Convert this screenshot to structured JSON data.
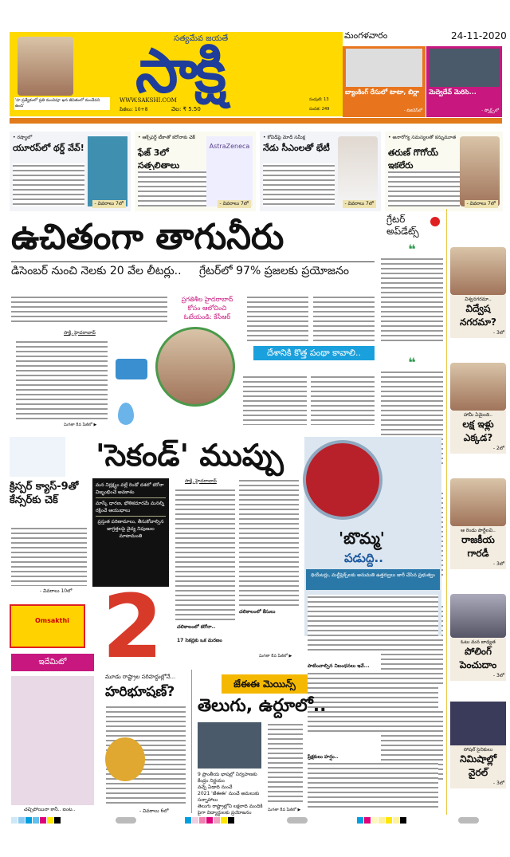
{
  "masthead": {
    "motto": "సత్యమేవ జయతే",
    "logo": "సాక్షి",
    "website": "WWW.SAKSHI.COM",
    "pages": "పేజీలు: 10+8",
    "price": "వెల: ₹ 5.50",
    "volume": "సంపుటి: 13",
    "issue": "సంచిక: 249",
    "day": "మంగళవారం",
    "date": "24-11-2020",
    "quote": "'హ ప్రత్యేకంలో ప్రతి మంచిపూ ఖన జీవితంలో మండేపని ఉంది'"
  },
  "top_teasers": [
    {
      "headline": "బ్యాంకింగ్ రేసులో టాటా, బిర్లా",
      "byline": "- బిజినెస్‌లో",
      "color": "#e8751e"
    },
    {
      "headline": "మెద్వెదేవ్ మెరిసె...",
      "byline": "- స్పోర్ట్స్‌లో",
      "color": "#c8177e"
    }
  ],
  "briefs": [
    {
      "kicker": "• రష్యాలో",
      "headline": "యూరప్‌లో థర్డ్ వేవ్!",
      "page": "- వివరాలు 7లో"
    },
    {
      "kicker": "• ఆక్స్‌ఫర్డ్ టీకాతో కరోనాకు చెక్",
      "headline": "ఫేజ్ 3లో సత్ఫలితాలు",
      "page": "- వివరాలు 7లో",
      "image_label": "AstraZeneca"
    },
    {
      "kicker": "• కోవిడ్‌పై మోదీ సమీక్ష",
      "headline": "నేడు సీఎంలతో భేటీ",
      "page": "- వివరాలు 7లో"
    },
    {
      "kicker": "• అనారోగ్య సమస్యలతో కన్నుమూత",
      "headline": "తరుణ్ గొగోయ్ ఇకలేరు",
      "page": "- వివరాలు 7లో"
    }
  ],
  "lead": {
    "headline": "ఉచితంగా తాగునీరు",
    "sub_left": "డిసెంబర్ నుంచి నెలకు 20 వేల లీటర్లు..",
    "sub_right": "గ్రేటర్‌లో 97% ప్రజలకు ప్రయోజనం",
    "pullquote": [
      "ప్రగతిశీల హైదరాబాద్",
      "కోసం ఆలోచించి",
      "ఓటేయండి: కేసీఆర్"
    ],
    "dateline": "సాక్షి, హైదరాబాద్",
    "continued": "మిగతా 8వ పేజీలో ▶",
    "box_heading": "దేశానికి కొత్త పంథా కావాలి.."
  },
  "updates": {
    "title": [
      "గ్రేటర్",
      "అప్‌డేట్స్"
    ],
    "items": [
      {
        "kicker": "విశ్వనగరమా..",
        "headline": "విద్వేష నగరమా?",
        "page": "- 3లో"
      },
      {
        "kicker": "హామీ ఏమైంది..",
        "headline": "లక్ష ఇళ్లు ఎక్కడ?",
        "page": "- 2లో"
      },
      {
        "kicker": "ఆ రెండు పార్టీలవి..",
        "headline": "రాజకీయ గారడీ",
        "page": "- 3లో"
      },
      {
        "kicker": "ఓటు మన బాధ్యత",
        "headline": "పోలింగ్ పెంచుదాం",
        "page": "- 3లో"
      },
      {
        "kicker": "సోషల్ సైనికులు",
        "headline": "నిమిషాల్లో వైరల్",
        "page": "- 3లో"
      }
    ]
  },
  "crispr": {
    "headline": "క్రిస్పర్ క్యాస్-9తో కేన్సర్‌కు చెక్",
    "page": "- వివరాలు 10లో"
  },
  "second": {
    "headline": "'సెకండ్' ముప్పు",
    "box": [
      "మన నిర్లక్ష్యం వల్లే రెండో దశలో కరోనా విజృంభించే అవకాశం",
      "మాస్క్ ధారణ, భౌతికదూరమే మనల్ని రక్షించే ఆయుధాలు",
      "ప్రస్తుత పరిణామాలు, తీసుకోవాల్సిన జాగ్రత్తలపై వైద్య నిపుణుల మాటామంతి"
    ],
    "big": "2",
    "dateline": "సాక్షి, హైదరాబాద్",
    "subhead": "చలికాలంలో కరోనా..",
    "stat": "17 సెకన్లకు ఒక మరణం",
    "continued": "మిగతా 8వ పేజీలో ▶"
  },
  "cinema": {
    "headline": "'బొమ్మ'",
    "sub": "పడుద్ది..",
    "deck": "థియేటర్లు, మల్టీప్లెక్స్‌లకు అనుమతి ఉత్తర్వులు జారీ చేసిన ప్రభుత్వం",
    "box1": "పాటించాల్సిన నిబంధనలు ఇవే...",
    "box2": "ప్రేక్షకులు హర్షం.."
  },
  "ad": {
    "brand": "Omsakthi"
  },
  "cartoon": {
    "title": "ఇదేమిటో",
    "caption": "చచ్చిపోయినా కానీ.. ఐంట.."
  },
  "haribhushan": {
    "kicker": "మూడు రాష్ట్రాల సరిహద్దుల్లోనే...",
    "headline": "హరిభూషణ్?",
    "page": "- వివరాలు 6లో"
  },
  "jee": {
    "tag": "జేఈఈ మెయిన్స్",
    "headline": "తెలుగు, ఉర్దూలో..",
    "bullets": [
      "9 ప్రాంతీయ భాషల్లో నిర్వహణకు కేంద్రం నిర్ణయం",
      "వచ్చే ఏడాది నుంచే",
      "2021 'జేఈఈ' నుంచే అమలుకు సన్నాహాలు",
      "తెలుగు రాష్ట్రాల్లోని లక్షలాది మందికి పైగా విద్యార్థులకు ప్రయోజనం"
    ],
    "continued": "మిగతా 8వ పేజీలో ▶"
  }
}
